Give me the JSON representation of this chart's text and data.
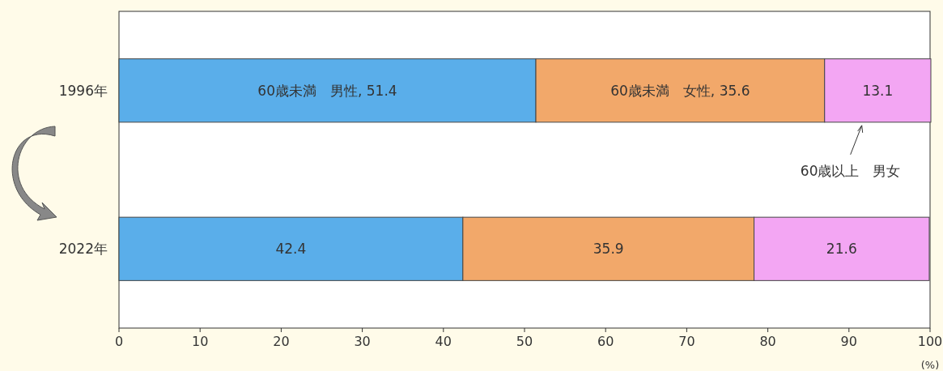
{
  "chart_data": {
    "type": "bar",
    "orientation": "horizontal",
    "stacked": true,
    "xlabel": "(%)",
    "categories": [
      "1996年",
      "2022年"
    ],
    "series": [
      {
        "color": "#5aaeea",
        "values": [
          51.4,
          42.4
        ],
        "value_labels": [
          "60歳未満　男性, 51.4",
          "42.4"
        ]
      },
      {
        "color": "#f2a86a",
        "values": [
          35.6,
          35.9
        ],
        "value_labels": [
          "60歳未満　女性, 35.6",
          "35.9"
        ]
      },
      {
        "name": "60歳以上　男女",
        "color": "#f3a6f3",
        "values": [
          13.1,
          21.6
        ],
        "value_labels": [
          "13.1",
          "21.6"
        ]
      }
    ],
    "xlim": [
      0,
      100
    ],
    "xticks": [
      0,
      10,
      20,
      30,
      40,
      50,
      60,
      70,
      80,
      90,
      100
    ],
    "grid": false
  }
}
